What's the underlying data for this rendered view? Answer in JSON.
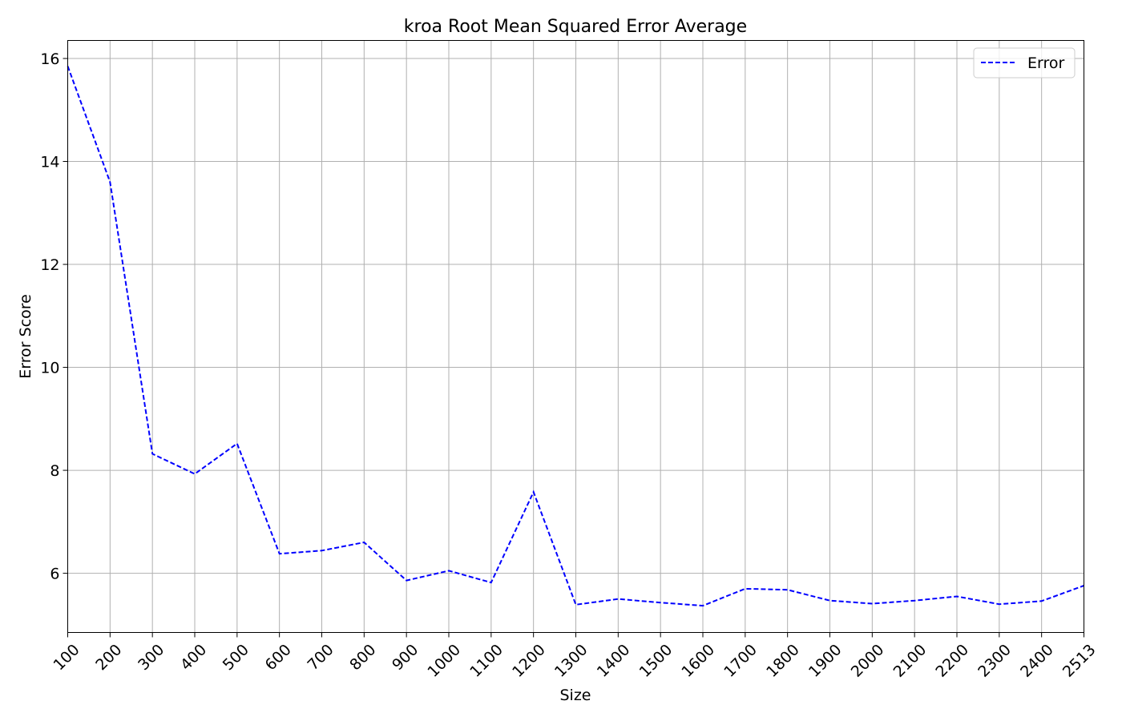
{
  "chart_data": {
    "type": "line",
    "title": "kroa Root Mean Squared Error Average",
    "xlabel": "Size",
    "ylabel": "Error Score",
    "categories": [
      "100",
      "200",
      "300",
      "400",
      "500",
      "600",
      "700",
      "800",
      "900",
      "1000",
      "1100",
      "1200",
      "1300",
      "1400",
      "1500",
      "1600",
      "1700",
      "1800",
      "1900",
      "2000",
      "2100",
      "2200",
      "2300",
      "2400",
      "2513"
    ],
    "series": [
      {
        "name": "Error",
        "color": "#0000ff",
        "line_style": "dashed",
        "values": [
          15.85,
          13.6,
          8.32,
          7.93,
          8.52,
          6.38,
          6.44,
          6.6,
          5.86,
          6.05,
          5.82,
          7.58,
          5.39,
          5.5,
          5.43,
          5.37,
          5.7,
          5.68,
          5.47,
          5.41,
          5.47,
          5.55,
          5.4,
          5.46,
          5.76
        ]
      }
    ],
    "ylim": [
      4.85,
      16.35
    ],
    "yticks": [
      6,
      8,
      10,
      12,
      14,
      16
    ],
    "grid": true,
    "legend_position": "top-right"
  }
}
